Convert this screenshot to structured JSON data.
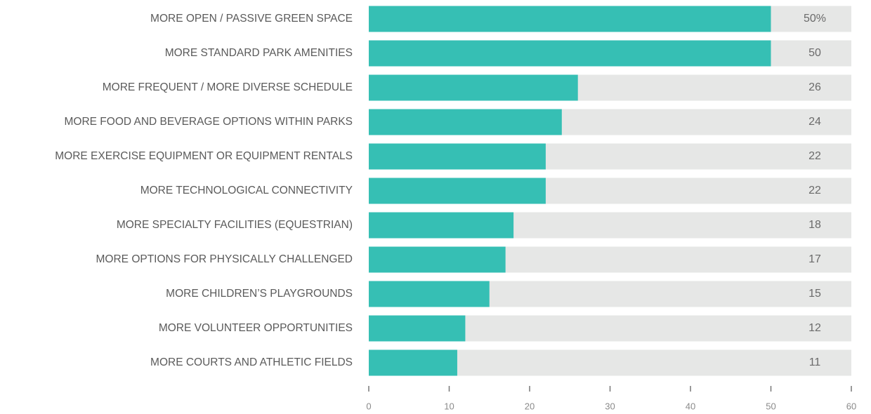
{
  "chart_data": {
    "type": "barh",
    "categories": [
      "MORE OPEN / PASSIVE GREEN SPACE",
      "MORE STANDARD PARK AMENITIES",
      "MORE FREQUENT / MORE DIVERSE SCHEDULE",
      "MORE FOOD AND BEVERAGE OPTIONS WITHIN PARKS",
      "MORE EXERCISE EQUIPMENT OR EQUIPMENT RENTALS",
      "MORE TECHNOLOGICAL CONNECTIVITY",
      "MORE SPECIALTY FACILITIES (EQUESTRIAN)",
      "MORE OPTIONS FOR PHYSICALLY CHALLENGED",
      "MORE CHILDREN’S PLAYGROUNDS",
      "MORE VOLUNTEER OPPORTUNITIES",
      "MORE COURTS AND ATHLETIC FIELDS"
    ],
    "values": [
      50,
      50,
      26,
      24,
      22,
      22,
      18,
      17,
      15,
      12,
      11
    ],
    "value_labels": [
      "50%",
      "50",
      "26",
      "24",
      "22",
      "22",
      "18",
      "17",
      "15",
      "12",
      "11"
    ],
    "color": "#36bfb4",
    "track_color": "#e6e7e6",
    "xlim": [
      0,
      60
    ],
    "xticks": [
      0,
      10,
      20,
      30,
      40,
      50,
      60
    ]
  }
}
